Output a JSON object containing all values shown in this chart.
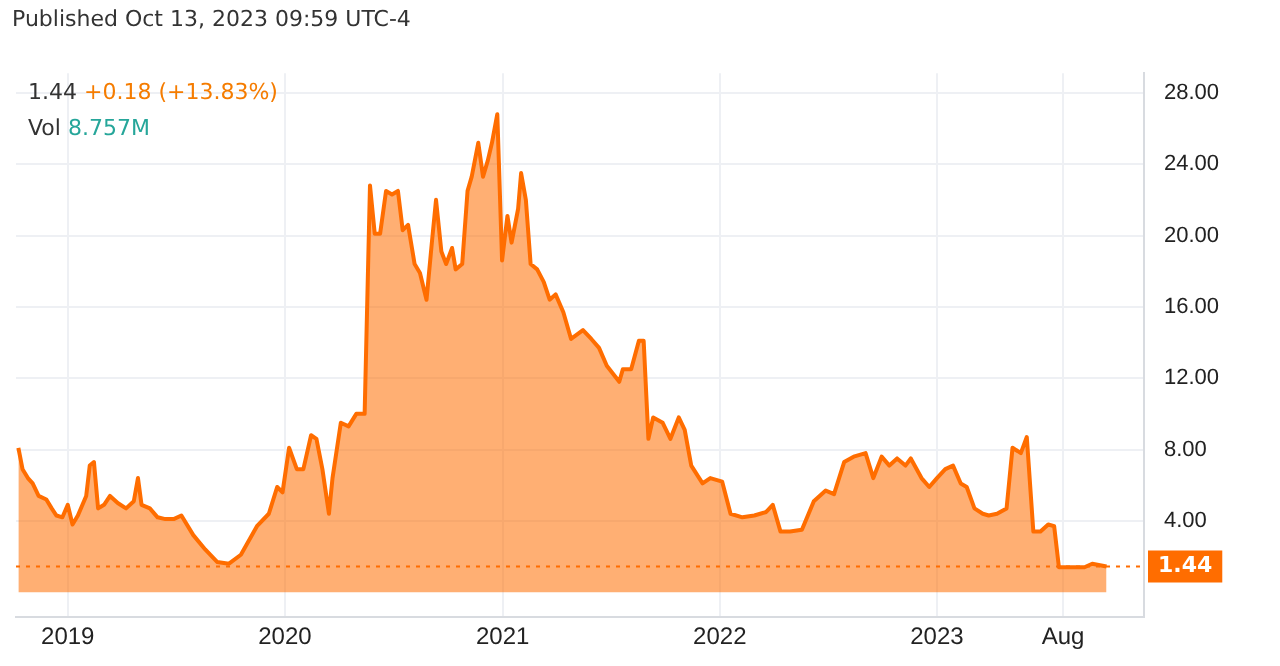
{
  "chart_data": {
    "type": "area",
    "annotations": [
      "Published Oct 13, 2023 09:59 UTC-4",
      "1.44 +0.18 (+13.83%)",
      "Vol 8.757M"
    ],
    "x": [
      "2018-10-10",
      "2018-10-17",
      "2018-10-26",
      "2018-11-03",
      "2018-11-13",
      "2018-11-26",
      "2018-12-05",
      "2018-12-13",
      "2018-12-23",
      "2019-01-01",
      "2019-01-09",
      "2019-01-18",
      "2019-02-01",
      "2019-02-07",
      "2019-02-14",
      "2019-02-21",
      "2019-03-03",
      "2019-03-13",
      "2019-03-26",
      "2019-04-09",
      "2019-04-22",
      "2019-04-29",
      "2019-05-05",
      "2019-05-19",
      "2019-06-01",
      "2019-06-14",
      "2019-06-28",
      "2019-07-11",
      "2019-07-31",
      "2019-08-20",
      "2019-09-09",
      "2019-09-29",
      "2019-10-19",
      "2019-11-15",
      "2019-12-05",
      "2019-12-19",
      "2019-12-28",
      "2020-01-08",
      "2020-01-21",
      "2020-02-01",
      "2020-02-14",
      "2020-02-23",
      "2020-03-04",
      "2020-03-15",
      "2020-03-21",
      "2020-04-04",
      "2020-04-17",
      "2020-04-30",
      "2020-05-14",
      "2020-05-23",
      "2020-05-31",
      "2020-06-09",
      "2020-06-19",
      "2020-06-29",
      "2020-07-09",
      "2020-07-17",
      "2020-07-26",
      "2020-08-06",
      "2020-08-15",
      "2020-08-26",
      "2020-09-04",
      "2020-09-11",
      "2020-09-20",
      "2020-09-28",
      "2020-10-08",
      "2020-10-14",
      "2020-10-25",
      "2020-11-03",
      "2020-11-10",
      "2020-11-21",
      "2020-11-29",
      "2020-12-07",
      "2020-12-14",
      "2020-12-23",
      "2020-12-31",
      "2021-01-09",
      "2021-01-16",
      "2021-01-27",
      "2021-02-01",
      "2021-02-09",
      "2021-02-17",
      "2021-02-28",
      "2021-03-11",
      "2021-03-21",
      "2021-03-31",
      "2021-04-13",
      "2021-04-26",
      "2021-05-16",
      "2021-05-30",
      "2021-06-12",
      "2021-06-25",
      "2021-07-16",
      "2021-07-22",
      "2021-08-05",
      "2021-08-18",
      "2021-08-26",
      "2021-09-03",
      "2021-09-11",
      "2021-09-27",
      "2021-10-10",
      "2021-10-24",
      "2021-11-03",
      "2021-11-14",
      "2021-12-03",
      "2021-12-16",
      "2022-01-05",
      "2022-01-19",
      "2022-02-08",
      "2022-02-28",
      "2022-03-20",
      "2022-03-31",
      "2022-04-13",
      "2022-04-29",
      "2022-05-19",
      "2022-06-08",
      "2022-06-28",
      "2022-07-12",
      "2022-07-29",
      "2022-08-14",
      "2022-09-03",
      "2022-09-16",
      "2022-09-30",
      "2022-10-13",
      "2022-10-26",
      "2022-11-09",
      "2022-11-18",
      "2022-12-06",
      "2022-12-19",
      "2023-01-01",
      "2023-01-15",
      "2023-01-28",
      "2023-02-10",
      "2023-02-20",
      "2023-03-05",
      "2023-03-19",
      "2023-03-29",
      "2023-04-12",
      "2023-04-28",
      "2023-05-08",
      "2023-05-22",
      "2023-06-01",
      "2023-06-12",
      "2023-06-24",
      "2023-07-07",
      "2023-07-17",
      "2023-07-25",
      "2023-08-17",
      "2023-09-06",
      "2023-09-19",
      "2023-10-13"
    ],
    "series": [
      {
        "color": "#ff6d00",
        "values": [
          8.1,
          6.9,
          6.4,
          6.1,
          5.4,
          5.2,
          4.7,
          4.3,
          4.2,
          4.9,
          3.8,
          4.3,
          5.4,
          7.1,
          7.3,
          4.7,
          4.9,
          5.4,
          5.0,
          4.7,
          5.1,
          6.4,
          4.9,
          4.7,
          4.2,
          4.1,
          4.1,
          4.3,
          3.2,
          2.4,
          1.7,
          1.6,
          2.1,
          3.7,
          4.4,
          5.9,
          5.6,
          8.1,
          6.9,
          6.9,
          8.8,
          8.6,
          6.9,
          4.4,
          6.4,
          9.5,
          9.3,
          10.0,
          10.0,
          22.8,
          20.1,
          20.1,
          22.5,
          22.3,
          22.5,
          20.3,
          20.6,
          18.4,
          17.9,
          16.4,
          19.6,
          22.0,
          19.1,
          18.4,
          19.3,
          18.1,
          18.4,
          22.5,
          23.3,
          25.2,
          23.3,
          24.2,
          25.2,
          26.8,
          18.6,
          21.1,
          19.6,
          21.5,
          23.5,
          22.0,
          18.4,
          18.1,
          17.4,
          16.4,
          16.7,
          15.7,
          14.2,
          14.7,
          14.2,
          13.7,
          12.7,
          11.8,
          12.5,
          12.5,
          14.1,
          14.1,
          8.6,
          9.8,
          9.5,
          8.6,
          9.8,
          9.1,
          7.1,
          6.1,
          6.4,
          6.2,
          4.4,
          4.2,
          4.3,
          4.5,
          4.9,
          3.4,
          3.4,
          3.5,
          5.1,
          5.7,
          5.5,
          7.3,
          7.6,
          7.8,
          6.4,
          7.6,
          7.1,
          7.5,
          7.1,
          7.5,
          6.4,
          5.9,
          6.4,
          6.9,
          7.1,
          6.1,
          5.9,
          4.7,
          4.4,
          4.3,
          4.4,
          4.7,
          8.1,
          7.8,
          8.7,
          3.4,
          3.4,
          3.8,
          3.7,
          1.4,
          1.4,
          1.4,
          1.6,
          1.44
        ]
      }
    ],
    "xlim": [
      "2018-10-06",
      "2023-12-15"
    ],
    "xticks": [
      {
        "value": "2019-01-01",
        "label": "2019"
      },
      {
        "value": "2020-01-01",
        "label": "2020"
      },
      {
        "value": "2021-01-01",
        "label": "2021"
      },
      {
        "value": "2022-01-01",
        "label": "2022"
      },
      {
        "value": "2023-01-01",
        "label": "2023"
      },
      {
        "value": "2023-08-01",
        "label": "Aug"
      }
    ],
    "ylim": [
      -1.4,
      29.1
    ],
    "yticks": [
      {
        "value": 4,
        "label": "4.00"
      },
      {
        "value": 8,
        "label": "8.00"
      },
      {
        "value": 12,
        "label": "12.00"
      },
      {
        "value": 16,
        "label": "16.00"
      },
      {
        "value": 20,
        "label": "20.00"
      },
      {
        "value": 24,
        "label": "24.00"
      },
      {
        "value": 28,
        "label": "28.00"
      }
    ],
    "ref_lines": [
      {
        "axis": "y",
        "value": 1.44,
        "label": "1.44",
        "color": "#ff6d00",
        "line_style": "dotted"
      }
    ],
    "grid": true,
    "legend": false
  }
}
